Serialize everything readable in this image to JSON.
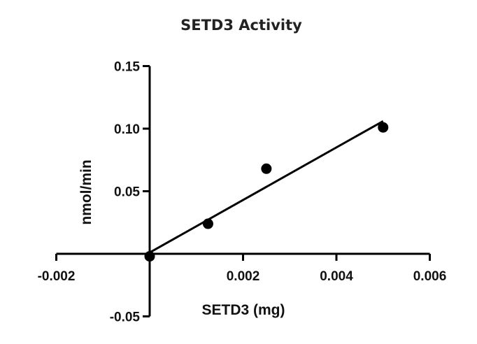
{
  "chart_data": {
    "type": "scatter",
    "title": "SETD3 Activity",
    "xlabel": "SETD3 (mg)",
    "ylabel": "nmol/min",
    "xlim": [
      -0.002,
      0.006
    ],
    "ylim": [
      -0.05,
      0.15
    ],
    "x_ticks": [
      "-0.002",
      "0.002",
      "0.004",
      "0.006"
    ],
    "x_tick_values": [
      -0.002,
      0.002,
      0.004,
      0.006
    ],
    "y_ticks": [
      "0.15",
      "0.10",
      "0.05",
      "-0.05"
    ],
    "y_tick_values": [
      0.15,
      0.1,
      0.05,
      -0.05
    ],
    "points": [
      {
        "x": 0,
        "y": -0.002
      },
      {
        "x": 0.00125,
        "y": 0.024
      },
      {
        "x": 0.0025,
        "y": 0.068
      },
      {
        "x": 0.005,
        "y": 0.101
      }
    ],
    "fit_line": {
      "x": [
        0,
        0.005
      ],
      "y": [
        0.001,
        0.106
      ]
    },
    "grid": false,
    "colors": {
      "marks": "#000000"
    }
  }
}
